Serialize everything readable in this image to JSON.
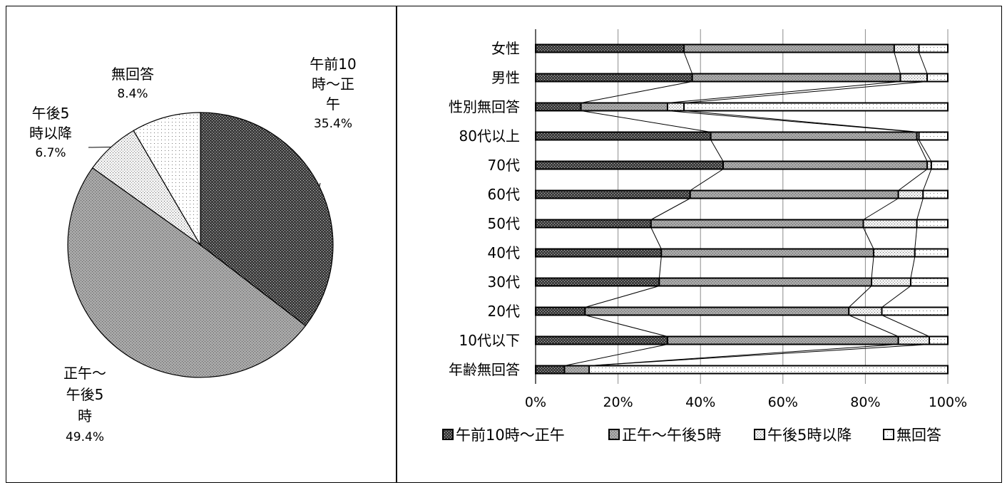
{
  "colors": {
    "morning": "#3d3d3d",
    "afternoon": "#a8a8a8",
    "evening": "#d4d4d4",
    "no_answer": "#ffffff",
    "stroke": "#000000",
    "grid": "#8c8c8c"
  },
  "pie": {
    "chart_data": {
      "type": "pie",
      "slices": [
        {
          "key": "morning",
          "label_lines": [
            "午前10",
            "時～正",
            "午"
          ],
          "value": 35.4,
          "value_text": "35.4%"
        },
        {
          "key": "afternoon",
          "label_lines": [
            "正午～",
            "午後5",
            "時"
          ],
          "value": 49.4,
          "value_text": "49.4%"
        },
        {
          "key": "evening",
          "label_lines": [
            "午後5",
            "時以降"
          ],
          "value": 6.7,
          "value_text": "6.7%"
        },
        {
          "key": "no_answer",
          "label_lines": [
            "無回答"
          ],
          "value": 8.4,
          "value_text": "8.4%"
        }
      ]
    }
  },
  "bar": {
    "chart_data": {
      "type": "bar",
      "orientation": "horizontal",
      "stacked_percent": true,
      "categories": [
        "女性",
        "男性",
        "性別無回答",
        "80代以上",
        "70代",
        "60代",
        "50代",
        "40代",
        "30代",
        "20代",
        "10代以下",
        "年齢無回答"
      ],
      "series": [
        {
          "name": "午前10時～正午",
          "key": "morning",
          "values": [
            36,
            38,
            11,
            42.5,
            45.5,
            37.5,
            28,
            30.5,
            30,
            12,
            32,
            7
          ]
        },
        {
          "name": "正午～午後5時",
          "key": "afternoon",
          "values": [
            51,
            50.5,
            21,
            50,
            49.5,
            50.5,
            51.5,
            51.5,
            51.5,
            64,
            56,
            6
          ]
        },
        {
          "name": "午後5時以降",
          "key": "evening",
          "values": [
            6,
            6.5,
            4,
            0.5,
            1,
            6,
            13,
            10,
            9.5,
            8,
            7.5,
            0
          ]
        },
        {
          "name": "無回答",
          "key": "no_answer",
          "values": [
            7,
            5,
            64,
            7,
            4,
            6,
            7.5,
            8,
            9,
            16,
            4.5,
            87
          ]
        }
      ],
      "x_ticks": [
        "0%",
        "20%",
        "40%",
        "60%",
        "80%",
        "100%"
      ],
      "xlim": [
        0,
        100
      ],
      "grid": true,
      "series_lines": true,
      "legend_position": "bottom"
    }
  }
}
